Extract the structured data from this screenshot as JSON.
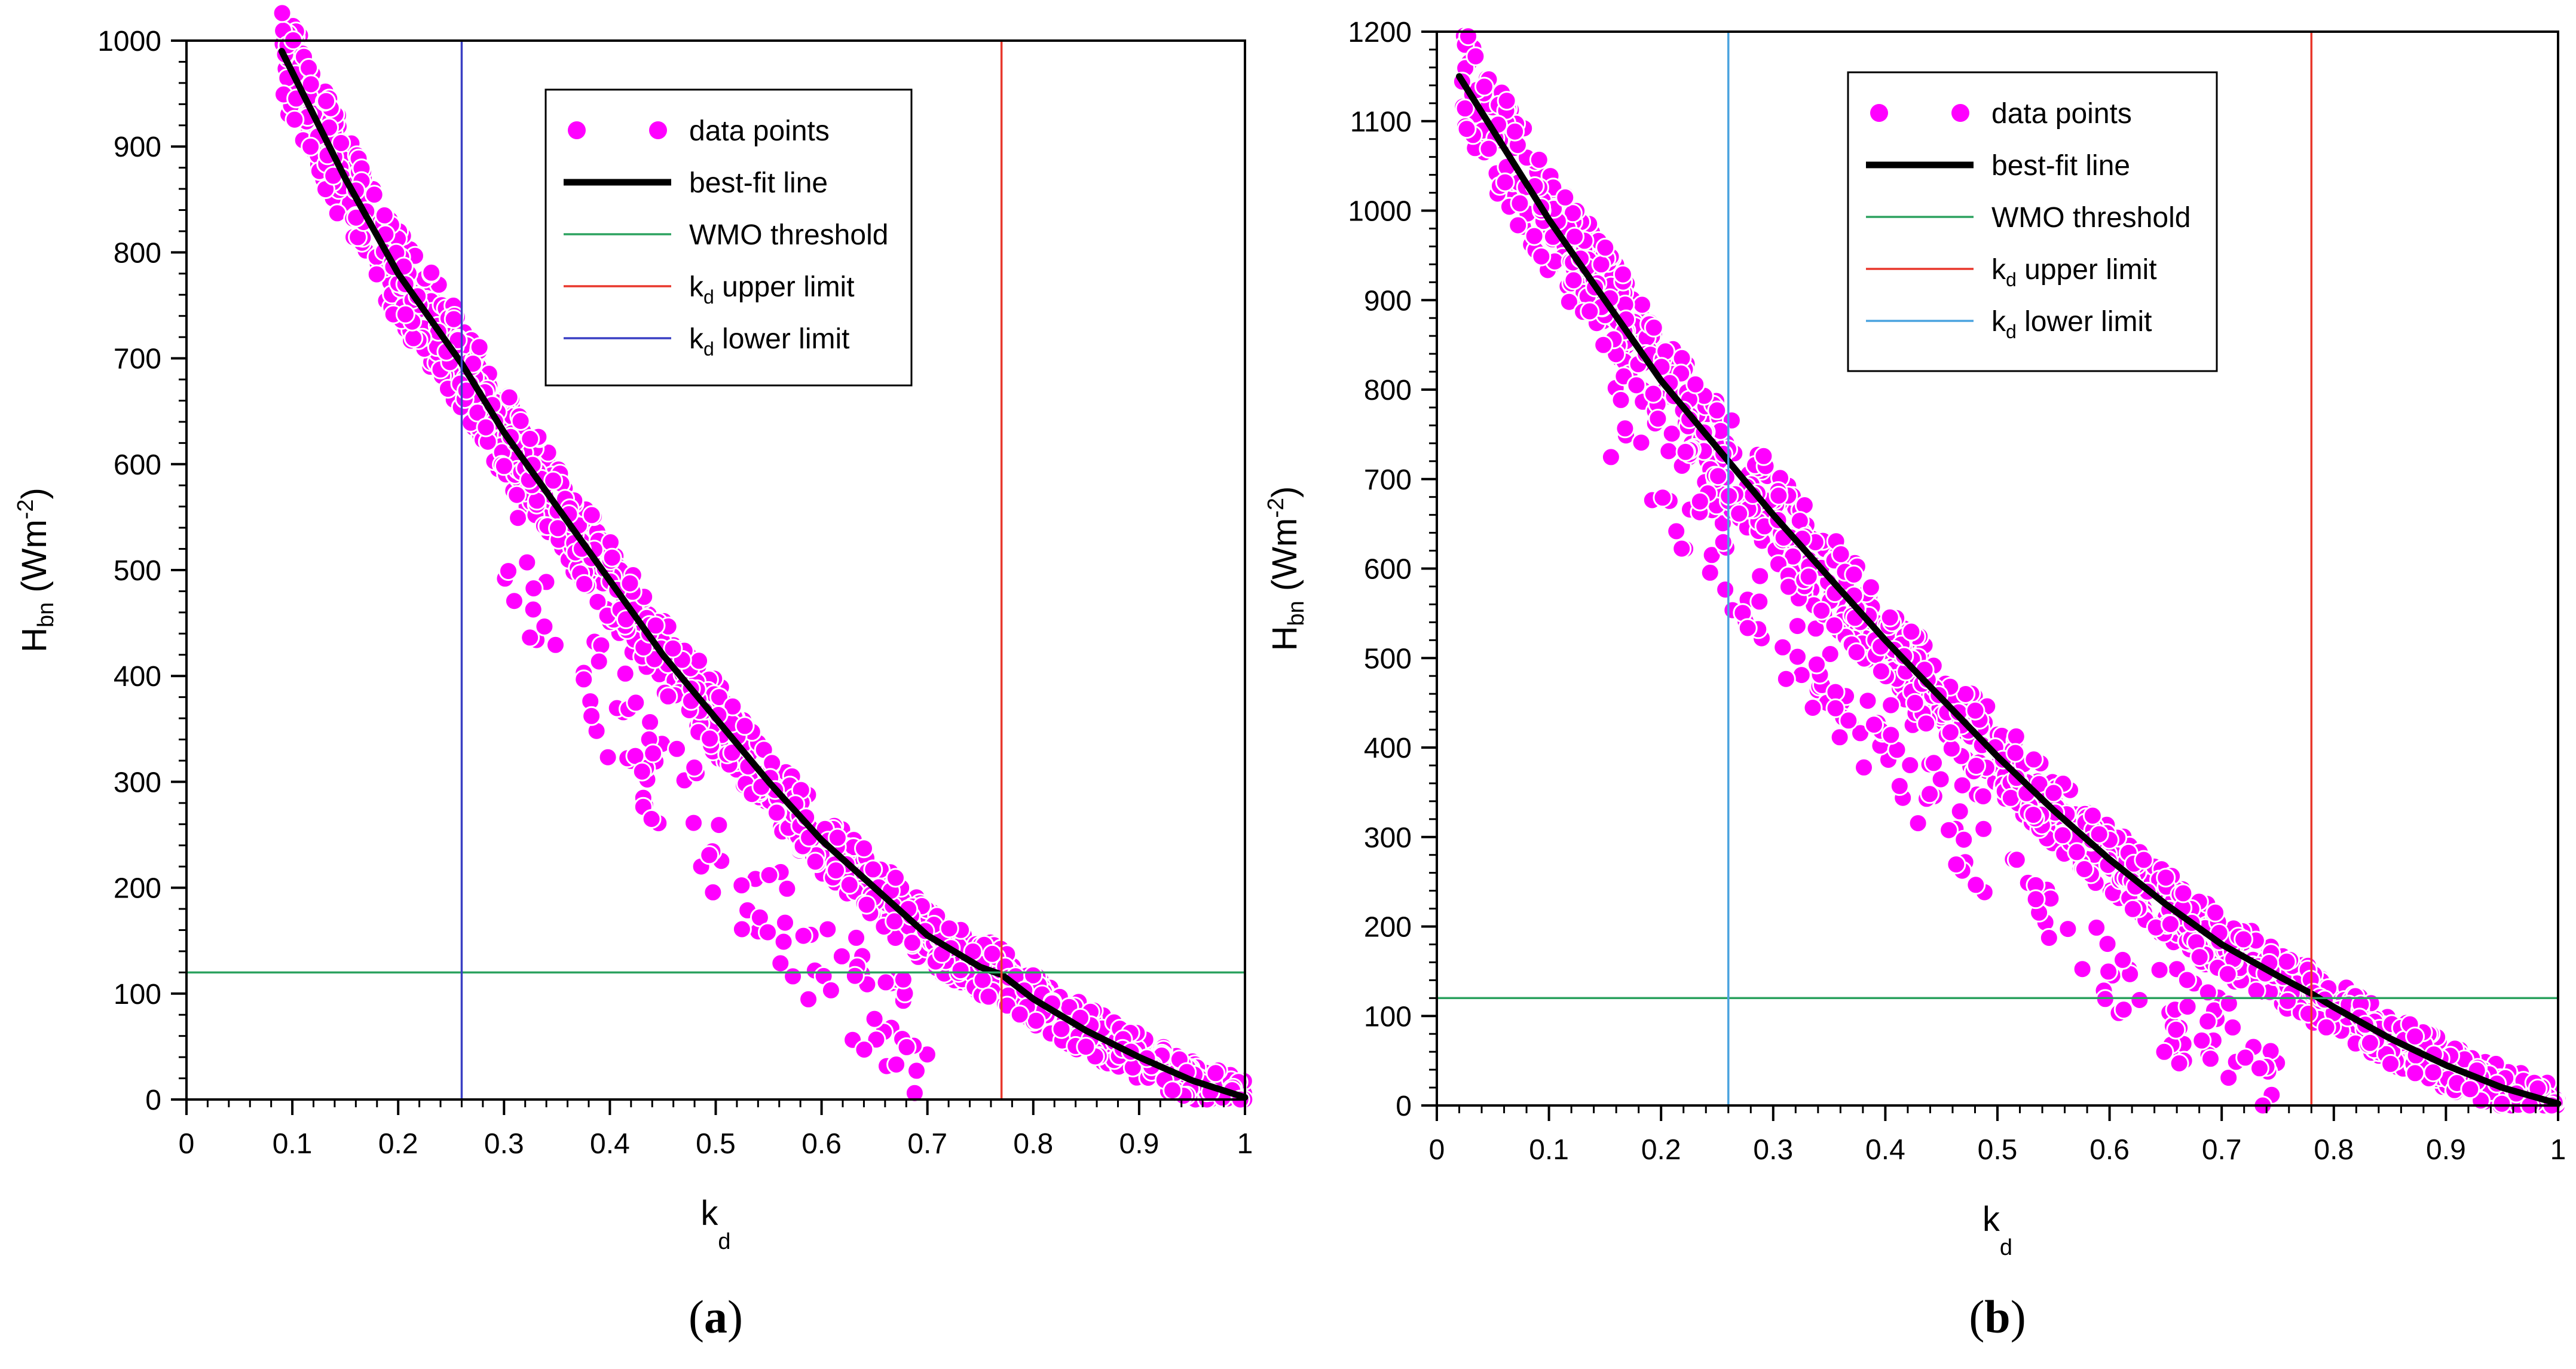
{
  "colors": {
    "points": "#ff00ff",
    "point_edge": "#ffffff",
    "fit": "#000000",
    "wmo": "#2ca25f",
    "upper": "#e8372b",
    "lower_a": "#3a3fc4",
    "lower_b": "#4aa3df",
    "axis": "#000000"
  },
  "chart_data": [
    {
      "type": "scatter",
      "panel_label": "a",
      "xlabel": "k",
      "xlabel_sub": "d",
      "ylabel": "H",
      "ylabel_sub": "bn",
      "ylabel_unit": "(Wm",
      "ylabel_sup": "-2",
      "ylabel_close": ")",
      "xlim": [
        0,
        1
      ],
      "ylim": [
        0,
        1000
      ],
      "xticks": [
        0,
        0.1,
        0.2,
        0.3,
        0.4,
        0.5,
        0.6,
        0.7,
        0.8,
        0.9,
        1
      ],
      "xtick_labels": [
        "0",
        "0.1",
        "0.2",
        "0.3",
        "0.4",
        "0.5",
        "0.6",
        "0.7",
        "0.8",
        "0.9",
        "1"
      ],
      "yticks": [
        0,
        100,
        200,
        300,
        400,
        500,
        600,
        700,
        800,
        900,
        1000
      ],
      "ytick_labels": [
        "0",
        "100",
        "200",
        "300",
        "400",
        "500",
        "600",
        "700",
        "800",
        "900",
        "1000"
      ],
      "legend": {
        "position": "top-center",
        "entries": [
          {
            "key": "points",
            "label": "data points"
          },
          {
            "key": "fit",
            "label": "best-fit line"
          },
          {
            "key": "wmo",
            "label": "WMO threshold"
          },
          {
            "key": "upper",
            "label_main": "k",
            "label_sub": "d",
            "label_rest": " upper limit"
          },
          {
            "key": "lower",
            "label_main": "k",
            "label_sub": "d",
            "label_rest": " lower limit"
          }
        ]
      },
      "series": [
        {
          "name": "best-fit line",
          "x": [
            0.09,
            0.15,
            0.2,
            0.26,
            0.3,
            0.35,
            0.4,
            0.45,
            0.5,
            0.55,
            0.6,
            0.65,
            0.7,
            0.75,
            0.77,
            0.8,
            0.85,
            0.9,
            0.95,
            1.0
          ],
          "y": [
            990,
            870,
            780,
            695,
            630,
            560,
            490,
            420,
            360,
            300,
            245,
            200,
            155,
            125,
            118,
            95,
            65,
            40,
            18,
            2
          ]
        },
        {
          "name": "data points",
          "x_range": [
            0.09,
            1.0
          ],
          "spread": 45,
          "outlier_band": [
            0.3,
            0.7
          ]
        }
      ],
      "wmo_threshold": 120,
      "kd_upper_limit": 0.77,
      "kd_lower_limit": 0.26
    },
    {
      "type": "scatter",
      "panel_label": "b",
      "xlabel": "k",
      "xlabel_sub": "d",
      "ylabel": "H",
      "ylabel_sub": "bn",
      "ylabel_unit": "(Wm",
      "ylabel_sup": "-2",
      "ylabel_close": ")",
      "xlim": [
        0,
        1
      ],
      "ylim": [
        0,
        1200
      ],
      "xticks": [
        0,
        0.1,
        0.2,
        0.3,
        0.4,
        0.5,
        0.6,
        0.7,
        0.8,
        0.9,
        1
      ],
      "xtick_labels": [
        "0",
        "0.1",
        "0.2",
        "0.3",
        "0.4",
        "0.5",
        "0.6",
        "0.7",
        "0.8",
        "0.9",
        "1"
      ],
      "yticks": [
        0,
        100,
        200,
        300,
        400,
        500,
        600,
        700,
        800,
        900,
        1000,
        1100,
        1200
      ],
      "ytick_labels": [
        "0",
        "100",
        "200",
        "300",
        "400",
        "500",
        "600",
        "700",
        "800",
        "900",
        "1000",
        "1100",
        "1200"
      ],
      "legend": {
        "position": "top-center",
        "entries": [
          {
            "key": "points",
            "label": "data points"
          },
          {
            "key": "fit",
            "label": "best-fit line"
          },
          {
            "key": "wmo",
            "label": "WMO threshold"
          },
          {
            "key": "upper",
            "label_main": "k",
            "label_sub": "d",
            "label_rest": " upper limit"
          },
          {
            "key": "lower",
            "label_main": "k",
            "label_sub": "d",
            "label_rest": " lower limit"
          }
        ]
      },
      "series": [
        {
          "name": "best-fit line",
          "x": [
            0.02,
            0.05,
            0.1,
            0.15,
            0.2,
            0.26,
            0.3,
            0.35,
            0.4,
            0.45,
            0.5,
            0.55,
            0.6,
            0.65,
            0.7,
            0.75,
            0.78,
            0.8,
            0.85,
            0.9,
            0.95,
            1.0
          ],
          "y": [
            1150,
            1090,
            990,
            900,
            810,
            720,
            660,
            590,
            520,
            455,
            390,
            330,
            275,
            225,
            180,
            145,
            125,
            110,
            75,
            45,
            20,
            2
          ]
        },
        {
          "name": "data points",
          "x_range": [
            0.02,
            1.0
          ],
          "spread": 55,
          "outlier_band": [
            0.15,
            0.75
          ]
        }
      ],
      "wmo_threshold": 120,
      "kd_upper_limit": 0.78,
      "kd_lower_limit": 0.26
    }
  ]
}
